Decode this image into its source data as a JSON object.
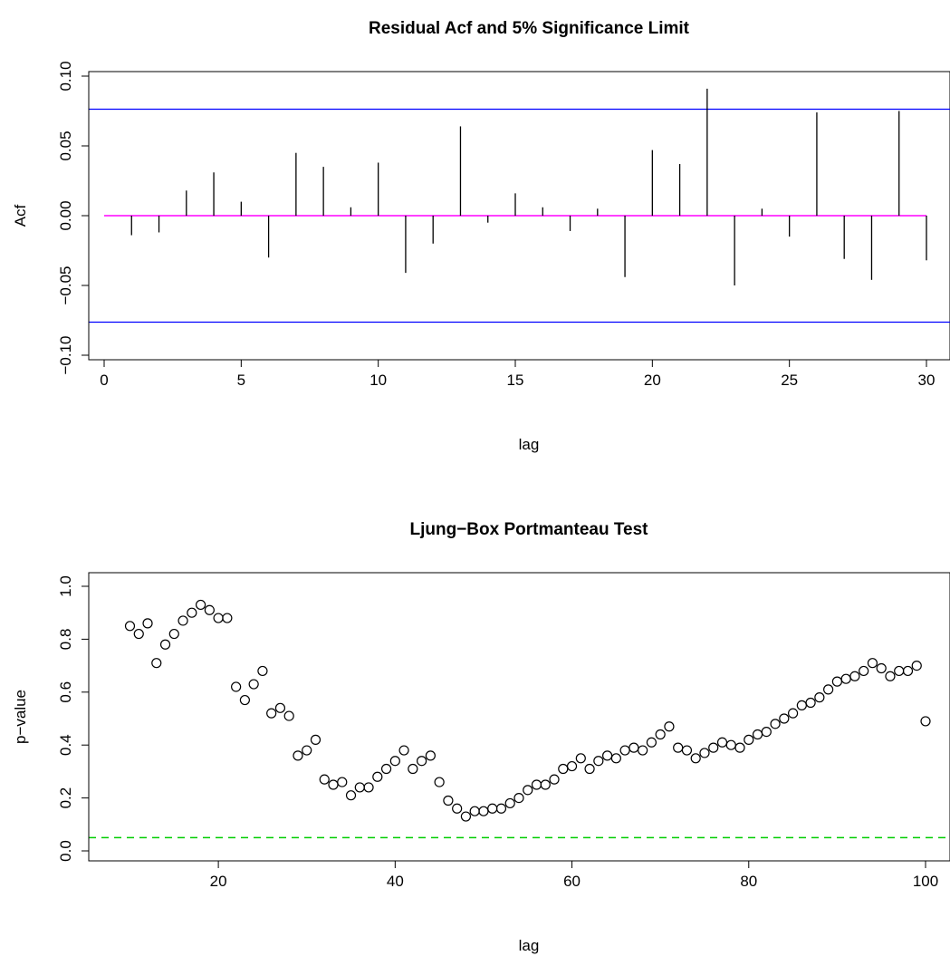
{
  "chart_data": [
    {
      "type": "bar",
      "title": "Residual Acf and 5% Significance Limit",
      "xlabel": "lag",
      "ylabel": "Acf",
      "xlim": [
        0,
        30
      ],
      "ylim": [
        -0.1,
        0.1
      ],
      "x_ticks": [
        0,
        5,
        10,
        15,
        20,
        25,
        30
      ],
      "x_tick_labels": [
        "0",
        "5",
        "10",
        "15",
        "20",
        "25",
        "30"
      ],
      "y_ticks": [
        -0.1,
        -0.05,
        0,
        0.05,
        0.1
      ],
      "y_tick_labels": [
        "−0.10",
        "−0.05",
        "0.00",
        "0.05",
        "0.10"
      ],
      "lags": [
        1,
        2,
        3,
        4,
        5,
        6,
        7,
        8,
        9,
        10,
        11,
        12,
        13,
        14,
        15,
        16,
        17,
        18,
        19,
        20,
        21,
        22,
        23,
        24,
        25,
        26,
        27,
        28,
        29,
        30
      ],
      "values": [
        -0.014,
        -0.012,
        0.018,
        0.031,
        0.01,
        -0.03,
        0.045,
        0.035,
        0.006,
        0.038,
        -0.041,
        -0.02,
        0.064,
        -0.005,
        0.016,
        0.006,
        -0.011,
        0.005,
        -0.044,
        0.047,
        0.037,
        0.091,
        -0.05,
        0.005,
        -0.015,
        0.074,
        -0.031,
        -0.046,
        0.075,
        -0.032
      ],
      "significance_limit": 0.0763,
      "colors": {
        "bars": "#000000",
        "zero_line": "#ff00ff",
        "limit_lines": "#0000ff"
      },
      "grid": false
    },
    {
      "type": "scatter",
      "title": "Ljung−Box Portmanteau Test",
      "xlabel": "lag",
      "ylabel": "p−value",
      "xlim": [
        10,
        100
      ],
      "ylim": [
        0,
        1
      ],
      "x_ticks": [
        20,
        40,
        60,
        80,
        100
      ],
      "x_tick_labels": [
        "20",
        "40",
        "60",
        "80",
        "100"
      ],
      "y_ticks": [
        0,
        0.2,
        0.4,
        0.6,
        0.8,
        1.0
      ],
      "y_tick_labels": [
        "0.0",
        "0.2",
        "0.4",
        "0.6",
        "0.8",
        "1.0"
      ],
      "x": [
        10,
        11,
        12,
        13,
        14,
        15,
        16,
        17,
        18,
        19,
        20,
        21,
        22,
        23,
        24,
        25,
        26,
        27,
        28,
        29,
        30,
        31,
        32,
        33,
        34,
        35,
        36,
        37,
        38,
        39,
        40,
        41,
        42,
        43,
        44,
        45,
        46,
        47,
        48,
        49,
        50,
        51,
        52,
        53,
        54,
        55,
        56,
        57,
        58,
        59,
        60,
        61,
        62,
        63,
        64,
        65,
        66,
        67,
        68,
        69,
        70,
        71,
        72,
        73,
        74,
        75,
        76,
        77,
        78,
        79,
        80,
        81,
        82,
        83,
        84,
        85,
        86,
        87,
        88,
        89,
        90,
        91,
        92,
        93,
        94,
        95,
        96,
        97,
        98,
        99,
        100
      ],
      "y": [
        0.85,
        0.82,
        0.86,
        0.71,
        0.78,
        0.82,
        0.87,
        0.9,
        0.93,
        0.91,
        0.88,
        0.88,
        0.62,
        0.57,
        0.63,
        0.68,
        0.52,
        0.54,
        0.51,
        0.36,
        0.38,
        0.42,
        0.27,
        0.25,
        0.26,
        0.21,
        0.24,
        0.24,
        0.28,
        0.31,
        0.34,
        0.38,
        0.31,
        0.34,
        0.36,
        0.26,
        0.19,
        0.16,
        0.13,
        0.15,
        0.15,
        0.16,
        0.16,
        0.18,
        0.2,
        0.23,
        0.25,
        0.25,
        0.27,
        0.31,
        0.32,
        0.35,
        0.31,
        0.34,
        0.36,
        0.35,
        0.38,
        0.39,
        0.38,
        0.41,
        0.44,
        0.47,
        0.39,
        0.38,
        0.35,
        0.37,
        0.39,
        0.41,
        0.4,
        0.39,
        0.42,
        0.44,
        0.45,
        0.48,
        0.5,
        0.52,
        0.55,
        0.56,
        0.58,
        0.61,
        0.64,
        0.65,
        0.66,
        0.68,
        0.71,
        0.69,
        0.66,
        0.68,
        0.68,
        0.7,
        0.49
      ],
      "significance_level": 0.05,
      "colors": {
        "points": "#000000",
        "reference_line": "#00cd00"
      },
      "grid": false
    }
  ]
}
